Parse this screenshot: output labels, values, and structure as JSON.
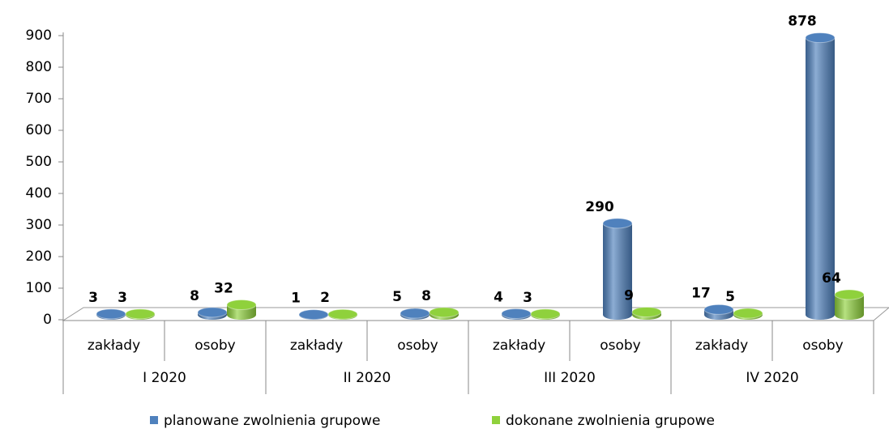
{
  "chart_data": {
    "type": "bar",
    "categories": [
      "zakłady",
      "osoby",
      "zakłady",
      "osoby",
      "zakłady",
      "osoby",
      "zakłady",
      "osoby"
    ],
    "groups": [
      "I 2020",
      "II 2020",
      "III 2020",
      "IV 2020"
    ],
    "series": [
      {
        "name": "planowane zwolnienia grupowe",
        "color": "#4f81bd",
        "values": [
          3,
          8,
          1,
          5,
          4,
          290,
          17,
          878
        ]
      },
      {
        "name": "dokonane zwolnienia grupowe",
        "color": "#8fd13c",
        "values": [
          3,
          32,
          2,
          8,
          3,
          9,
          5,
          64
        ]
      }
    ],
    "ylim": [
      0,
      900
    ],
    "yticks": [
      0,
      100,
      200,
      300,
      400,
      500,
      600,
      700,
      800,
      900
    ],
    "legend": "bottom"
  }
}
